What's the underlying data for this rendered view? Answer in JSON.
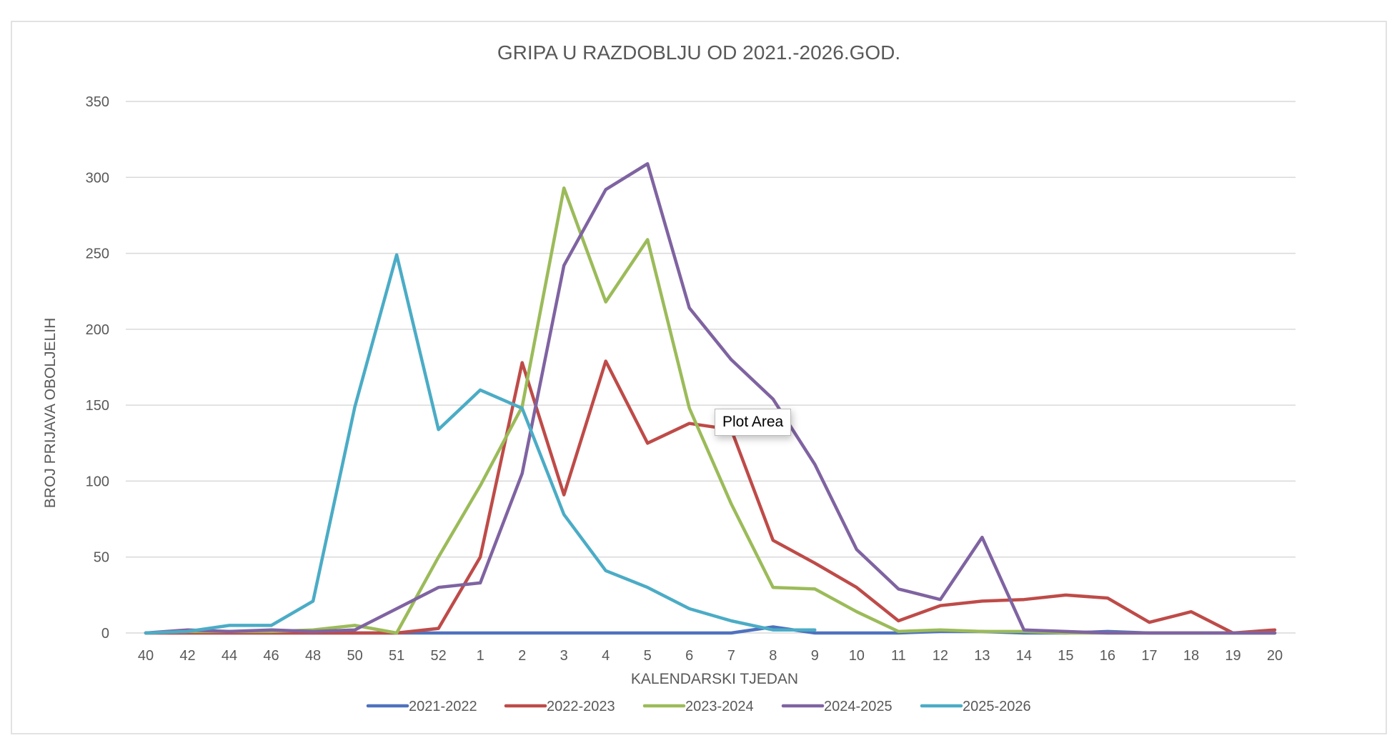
{
  "chart_data": {
    "type": "line",
    "title": "GRIPA U RAZDOBLJU OD 2021.-2026.GOD.",
    "xlabel": "KALENDARSKI TJEDAN",
    "ylabel": "BROJ PRIJAVA OBOLJELIH",
    "ylim": [
      0,
      350
    ],
    "yticks": [
      0,
      50,
      100,
      150,
      200,
      250,
      300,
      350
    ],
    "grid": true,
    "legend_position": "bottom",
    "categories": [
      "40",
      "42",
      "44",
      "46",
      "48",
      "50",
      "51",
      "52",
      "1",
      "2",
      "3",
      "4",
      "5",
      "6",
      "7",
      "8",
      "9",
      "10",
      "11",
      "12",
      "13",
      "14",
      "15",
      "16",
      "17",
      "18",
      "19",
      "20"
    ],
    "series": [
      {
        "name": "2021-2022",
        "color": "#4f72be",
        "values": [
          0,
          0,
          0,
          0,
          0,
          0,
          0,
          0,
          0,
          0,
          0,
          0,
          0,
          0,
          0,
          4,
          0,
          0,
          0,
          1,
          1,
          0,
          0,
          1,
          0,
          0,
          0,
          0
        ]
      },
      {
        "name": "2022-2023",
        "color": "#be4b48",
        "values": [
          0,
          0,
          0,
          0,
          0,
          0,
          0,
          3,
          50,
          178,
          91,
          179,
          125,
          138,
          134,
          61,
          46,
          30,
          8,
          18,
          21,
          22,
          25,
          23,
          7,
          14,
          0,
          2
        ]
      },
      {
        "name": "2023-2024",
        "color": "#9bbb59",
        "values": [
          0,
          1,
          1,
          1,
          2,
          5,
          0,
          50,
          97,
          149,
          293,
          218,
          259,
          148,
          85,
          30,
          29,
          14,
          1,
          2,
          1,
          1,
          0,
          0,
          0,
          0,
          0,
          0
        ]
      },
      {
        "name": "2024-2025",
        "color": "#7f63a1",
        "values": [
          0,
          2,
          1,
          2,
          1,
          2,
          16,
          30,
          33,
          105,
          242,
          292,
          309,
          214,
          180,
          154,
          111,
          55,
          29,
          22,
          63,
          2,
          1,
          0,
          0,
          0,
          0,
          0
        ]
      },
      {
        "name": "2025-2026",
        "color": "#4bacc6",
        "values": [
          0,
          1,
          5,
          5,
          21,
          149,
          249,
          134,
          160,
          148,
          78,
          41,
          30,
          16,
          8,
          2,
          2,
          null,
          null,
          null,
          null,
          null,
          null,
          null,
          null,
          null,
          null,
          null
        ]
      }
    ]
  },
  "tooltip": "Plot Area"
}
